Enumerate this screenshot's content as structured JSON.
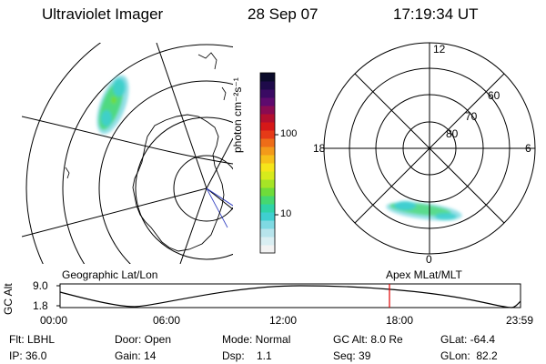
{
  "header": {
    "instrument": "Ultraviolet Imager",
    "date": "28 Sep 07",
    "time": "17:19:34 UT"
  },
  "panels": {
    "geographic_label": "Geographic Lat/Lon",
    "apex_label": "Apex MLat/MLT"
  },
  "colorbar": {
    "label": "photon cm⁻²s⁻¹",
    "scale": "log",
    "ticks": [
      "100",
      "10"
    ],
    "colors": [
      "#f2f2f2",
      "#d9eef2",
      "#b7e4ec",
      "#7fd9e2",
      "#3fcfd0",
      "#2fd3a6",
      "#45d870",
      "#6fdc3a",
      "#a6e426",
      "#d7ea1c",
      "#f5e51a",
      "#f6c01a",
      "#f39a1a",
      "#ee6d18",
      "#e63a17",
      "#d61818",
      "#b30f2f",
      "#8a0b52",
      "#5e0a6e",
      "#3a0a63",
      "#1e0a4a",
      "#0a0a2a"
    ]
  },
  "polar_plot": {
    "mlt_labels": {
      "top": "12",
      "left": "18",
      "right": "6",
      "bottom": "0"
    },
    "mlat_labels": [
      "60",
      "70",
      "80"
    ]
  },
  "altitude_plot": {
    "ylabel": "GC Alt",
    "y_ticks": [
      "9.0",
      "1.8"
    ],
    "x_ticks": [
      "00:00",
      "06:00",
      "12:00",
      "18:00",
      "23:59"
    ],
    "marker_color": "#e00000"
  },
  "footer": {
    "row1": {
      "flt": "Flt: LBHL",
      "door": "Door: Open",
      "mode": "Mode: Normal",
      "gc_alt": "GC Alt: 8.0 Re",
      "glat": "GLat: -64.4"
    },
    "row2": {
      "ip": "IP: 36.0",
      "gain": "Gain: 14",
      "dsp": "Dsp:    1.1",
      "seq": "Seq: 39",
      "glon": "GLon:  82.2"
    }
  }
}
